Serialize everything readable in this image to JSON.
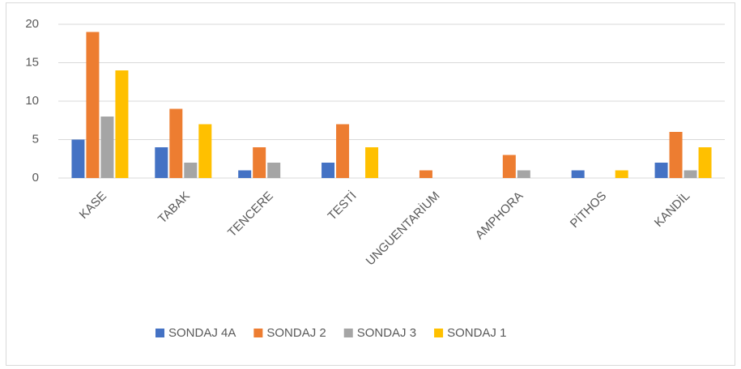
{
  "chart_data": {
    "type": "bar",
    "categories": [
      "KASE",
      "TABAK",
      "TENCERE",
      "TESTİ",
      "UNGUENTARİUM",
      "AMPHORA",
      "PİTHOS",
      "KANDİL"
    ],
    "series": [
      {
        "name": "SONDAJ 4A",
        "color": "#4472c4",
        "values": [
          5,
          4,
          1,
          2,
          0,
          0,
          1,
          2
        ]
      },
      {
        "name": "SONDAJ 2",
        "color": "#ed7d31",
        "values": [
          19,
          9,
          4,
          7,
          1,
          3,
          0,
          6
        ]
      },
      {
        "name": "SONDAJ 3",
        "color": "#a5a5a5",
        "values": [
          8,
          2,
          2,
          0,
          0,
          1,
          0,
          1
        ]
      },
      {
        "name": "SONDAJ 1",
        "color": "#ffc000",
        "values": [
          14,
          7,
          0,
          4,
          0,
          0,
          1,
          4
        ]
      }
    ],
    "ylim": [
      0,
      20
    ],
    "yticks": [
      0,
      5,
      10,
      15,
      20
    ],
    "grid": true,
    "legend": "bottom"
  }
}
